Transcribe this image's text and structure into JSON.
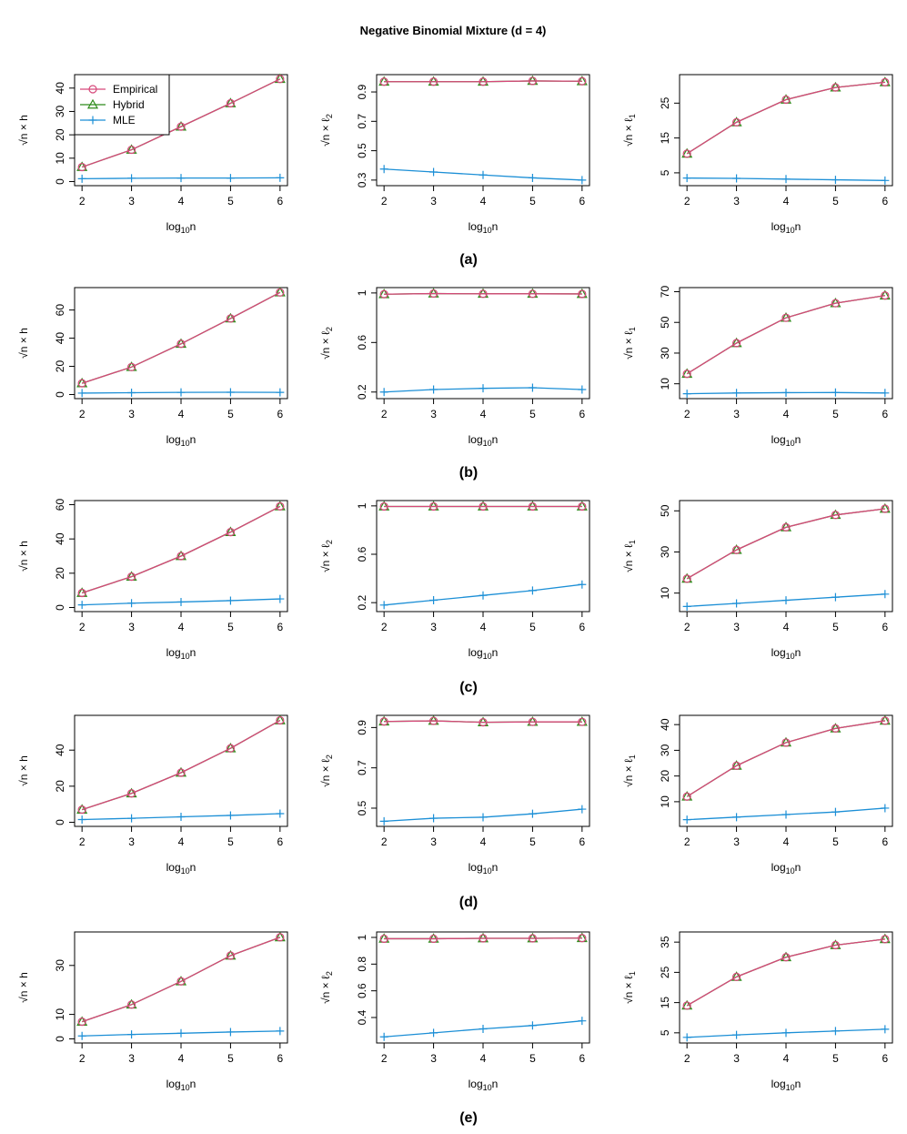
{
  "figure": {
    "title": "Negative Binomial Mixture (d = 4)",
    "legend": {
      "placement": "top-left of first plot",
      "entries": [
        {
          "name": "Empirical",
          "color": "#d6487a",
          "marker": "circle"
        },
        {
          "name": "Hybrid",
          "color": "#2e8b1a",
          "marker": "triangle"
        },
        {
          "name": "MLE",
          "color": "#1c8fd6",
          "marker": "plus"
        }
      ]
    },
    "rows": [
      {
        "label": "(a)"
      },
      {
        "label": "(b)"
      },
      {
        "label": "(c)"
      },
      {
        "label": "(d)"
      },
      {
        "label": "(e)"
      }
    ]
  },
  "axis_text": {
    "x_prefix": "log",
    "x_sub": "10",
    "x_suffix": "n",
    "sqrt_n": "√n",
    "y_h": " × h",
    "y_l2_pre": " × ℓ",
    "y_l2_sub": "2",
    "y_l1_pre": " × ℓ",
    "y_l1_sub": "1"
  },
  "chart_data": [
    {
      "type": "line",
      "row": "(a)",
      "metric": "h",
      "x": [
        2,
        3,
        4,
        5,
        6
      ],
      "xlim": [
        2,
        6
      ],
      "ylim": [
        0,
        44
      ],
      "yticks": [
        0,
        10,
        20,
        30,
        40
      ],
      "series": [
        {
          "name": "Empirical",
          "values": [
            6.2,
            13.6,
            23.5,
            33.5,
            43.9
          ]
        },
        {
          "name": "Hybrid",
          "values": [
            6.2,
            13.6,
            23.5,
            33.5,
            43.9
          ]
        },
        {
          "name": "MLE",
          "values": [
            1.2,
            1.4,
            1.5,
            1.5,
            1.6
          ]
        }
      ]
    },
    {
      "type": "line",
      "row": "(a)",
      "metric": "l2",
      "x": [
        2,
        3,
        4,
        5,
        6
      ],
      "xlim": [
        2,
        6
      ],
      "ylim": [
        0.29,
        0.99
      ],
      "yticks": [
        0.3,
        0.5,
        0.7,
        0.9
      ],
      "series": [
        {
          "name": "Empirical",
          "values": [
            0.97,
            0.97,
            0.97,
            0.975,
            0.973
          ]
        },
        {
          "name": "Hybrid",
          "values": [
            0.97,
            0.97,
            0.97,
            0.975,
            0.973
          ]
        },
        {
          "name": "MLE",
          "values": [
            0.375,
            0.355,
            0.335,
            0.315,
            0.3
          ]
        }
      ]
    },
    {
      "type": "line",
      "row": "(a)",
      "metric": "l1",
      "x": [
        2,
        3,
        4,
        5,
        6
      ],
      "xlim": [
        2,
        6
      ],
      "ylim": [
        2.5,
        32
      ],
      "yticks": [
        5,
        15,
        25
      ],
      "series": [
        {
          "name": "Empirical",
          "values": [
            10.5,
            19.5,
            26,
            29.5,
            31
          ]
        },
        {
          "name": "Hybrid",
          "values": [
            10.5,
            19.5,
            26,
            29.5,
            31
          ]
        },
        {
          "name": "MLE",
          "values": [
            3.5,
            3.4,
            3.2,
            3.0,
            2.8
          ]
        }
      ]
    },
    {
      "type": "line",
      "row": "(b)",
      "metric": "h",
      "x": [
        2,
        3,
        4,
        5,
        6
      ],
      "xlim": [
        2,
        6
      ],
      "ylim": [
        0,
        73
      ],
      "yticks": [
        0,
        20,
        40,
        60
      ],
      "series": [
        {
          "name": "Empirical",
          "values": [
            8,
            19.5,
            36,
            54,
            72.5
          ]
        },
        {
          "name": "Hybrid",
          "values": [
            8,
            19.5,
            36,
            54,
            72.5
          ]
        },
        {
          "name": "MLE",
          "values": [
            1,
            1.3,
            1.5,
            1.6,
            1.5
          ]
        }
      ]
    },
    {
      "type": "line",
      "row": "(b)",
      "metric": "l2",
      "x": [
        2,
        3,
        4,
        5,
        6
      ],
      "xlim": [
        0.18,
        1.01
      ],
      "ylim": [
        0.18,
        1.01
      ],
      "yticks": [
        0.2,
        0.6,
        1.0
      ],
      "series": [
        {
          "name": "Empirical",
          "values": [
            0.99,
            0.995,
            0.993,
            0.993,
            0.992
          ]
        },
        {
          "name": "Hybrid",
          "values": [
            0.99,
            0.995,
            0.993,
            0.993,
            0.992
          ]
        },
        {
          "name": "MLE",
          "values": [
            0.2,
            0.22,
            0.23,
            0.235,
            0.22
          ]
        }
      ]
    },
    {
      "type": "line",
      "row": "(b)",
      "metric": "l1",
      "x": [
        2,
        3,
        4,
        5,
        6
      ],
      "xlim": [
        2,
        6
      ],
      "ylim": [
        3,
        70
      ],
      "yticks": [
        10,
        30,
        50,
        70
      ],
      "series": [
        {
          "name": "Empirical",
          "values": [
            16.5,
            36.5,
            53,
            62.5,
            67.5
          ]
        },
        {
          "name": "Hybrid",
          "values": [
            16.5,
            36.5,
            53,
            62.5,
            67.5
          ]
        },
        {
          "name": "MLE",
          "values": [
            3.5,
            4,
            4.2,
            4.3,
            4
          ]
        }
      ]
    },
    {
      "type": "line",
      "row": "(c)",
      "metric": "h",
      "x": [
        2,
        3,
        4,
        5,
        6
      ],
      "xlim": [
        2,
        6
      ],
      "ylim": [
        0,
        60
      ],
      "yticks": [
        0,
        20,
        40,
        60
      ],
      "series": [
        {
          "name": "Empirical",
          "values": [
            8.5,
            18,
            30,
            44,
            59
          ]
        },
        {
          "name": "Hybrid",
          "values": [
            8.5,
            18,
            30,
            44,
            59
          ]
        },
        {
          "name": "MLE",
          "values": [
            1.5,
            2.5,
            3.2,
            4,
            5
          ]
        }
      ]
    },
    {
      "type": "line",
      "row": "(c)",
      "metric": "l2",
      "x": [
        2,
        3,
        4,
        5,
        6
      ],
      "xlim": [
        2,
        6
      ],
      "ylim": [
        0.16,
        1.01
      ],
      "yticks": [
        0.2,
        0.6,
        1.0
      ],
      "series": [
        {
          "name": "Empirical",
          "values": [
            0.995,
            0.995,
            0.995,
            0.995,
            0.995
          ]
        },
        {
          "name": "Hybrid",
          "values": [
            0.995,
            0.995,
            0.995,
            0.995,
            0.995
          ]
        },
        {
          "name": "MLE",
          "values": [
            0.18,
            0.22,
            0.26,
            0.3,
            0.35
          ]
        }
      ]
    },
    {
      "type": "line",
      "row": "(c)",
      "metric": "l1",
      "x": [
        2,
        3,
        4,
        5,
        6
      ],
      "xlim": [
        2,
        6
      ],
      "ylim": [
        3,
        53
      ],
      "yticks": [
        10,
        30,
        50
      ],
      "series": [
        {
          "name": "Empirical",
          "values": [
            17,
            31,
            42,
            48,
            51
          ]
        },
        {
          "name": "Hybrid",
          "values": [
            17,
            31,
            42,
            48,
            51
          ]
        },
        {
          "name": "MLE",
          "values": [
            3.5,
            5,
            6.5,
            8,
            9.5
          ]
        }
      ]
    },
    {
      "type": "line",
      "row": "(d)",
      "metric": "h",
      "x": [
        2,
        3,
        4,
        5,
        6
      ],
      "xlim": [
        2,
        6
      ],
      "ylim": [
        0,
        57
      ],
      "yticks": [
        0,
        20,
        40
      ],
      "series": [
        {
          "name": "Empirical",
          "values": [
            7,
            16,
            27.5,
            41,
            56.5
          ]
        },
        {
          "name": "Hybrid",
          "values": [
            7,
            16,
            27.5,
            41,
            56.5
          ]
        },
        {
          "name": "MLE",
          "values": [
            1.5,
            2.2,
            3,
            3.8,
            4.8
          ]
        }
      ]
    },
    {
      "type": "line",
      "row": "(d)",
      "metric": "l2",
      "x": [
        2,
        3,
        4,
        5,
        6
      ],
      "xlim": [
        2,
        6
      ],
      "ylim": [
        0.43,
        0.94
      ],
      "yticks": [
        0.5,
        0.7,
        0.9
      ],
      "series": [
        {
          "name": "Empirical",
          "values": [
            0.93,
            0.933,
            0.926,
            0.928,
            0.928
          ]
        },
        {
          "name": "Hybrid",
          "values": [
            0.93,
            0.933,
            0.926,
            0.928,
            0.928
          ]
        },
        {
          "name": "MLE",
          "values": [
            0.435,
            0.45,
            0.455,
            0.472,
            0.495
          ]
        }
      ]
    },
    {
      "type": "line",
      "row": "(d)",
      "metric": "l1",
      "x": [
        2,
        3,
        4,
        5,
        6
      ],
      "xlim": [
        2,
        6
      ],
      "ylim": [
        2,
        42
      ],
      "yticks": [
        10,
        20,
        30,
        40
      ],
      "series": [
        {
          "name": "Empirical",
          "values": [
            12,
            24,
            33,
            38.5,
            41.5
          ]
        },
        {
          "name": "Hybrid",
          "values": [
            12,
            24,
            33,
            38.5,
            41.5
          ]
        },
        {
          "name": "MLE",
          "values": [
            3,
            4,
            5,
            6,
            7.5
          ]
        }
      ]
    },
    {
      "type": "line",
      "row": "(e)",
      "metric": "h",
      "x": [
        2,
        3,
        4,
        5,
        6
      ],
      "xlim": [
        2,
        6
      ],
      "ylim": [
        0,
        42
      ],
      "yticks": [
        0,
        10,
        30
      ],
      "series": [
        {
          "name": "Empirical",
          "values": [
            7,
            14,
            23.5,
            34,
            41.5
          ]
        },
        {
          "name": "Hybrid",
          "values": [
            7,
            14,
            23.5,
            34,
            41.5
          ]
        },
        {
          "name": "MLE",
          "values": [
            1.2,
            1.8,
            2.3,
            2.8,
            3.2
          ]
        }
      ]
    },
    {
      "type": "line",
      "row": "(e)",
      "metric": "l2",
      "x": [
        2,
        3,
        4,
        5,
        6
      ],
      "xlim": [
        2,
        6
      ],
      "ylim": [
        0.24,
        1.01
      ],
      "yticks": [
        0.4,
        0.6,
        0.8,
        1.0
      ],
      "series": [
        {
          "name": "Empirical",
          "values": [
            0.99,
            0.99,
            0.993,
            0.993,
            0.995
          ]
        },
        {
          "name": "Hybrid",
          "values": [
            0.99,
            0.99,
            0.993,
            0.993,
            0.995
          ]
        },
        {
          "name": "MLE",
          "values": [
            0.255,
            0.285,
            0.315,
            0.34,
            0.375
          ]
        }
      ]
    },
    {
      "type": "line",
      "row": "(e)",
      "metric": "l1",
      "x": [
        2,
        3,
        4,
        5,
        6
      ],
      "xlim": [
        2,
        6
      ],
      "ylim": [
        3,
        37
      ],
      "yticks": [
        5,
        15,
        25,
        35
      ],
      "series": [
        {
          "name": "Empirical",
          "values": [
            14,
            23.5,
            30,
            34,
            36
          ]
        },
        {
          "name": "Hybrid",
          "values": [
            14,
            23.5,
            30,
            34,
            36
          ]
        },
        {
          "name": "MLE",
          "values": [
            3.5,
            4.3,
            5,
            5.6,
            6.2
          ]
        }
      ]
    }
  ]
}
